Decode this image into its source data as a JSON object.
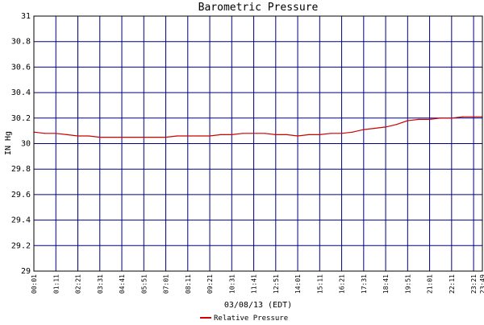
{
  "chart_data": {
    "type": "line",
    "title": "Barometric Pressure",
    "xlabel": "03/08/13 (EDT)",
    "ylabel": "IN Hg",
    "ylim": [
      29,
      31
    ],
    "yticks": [
      29,
      29.2,
      29.4,
      29.6,
      29.8,
      30,
      30.2,
      30.4,
      30.6,
      30.8,
      31
    ],
    "ytick_labels": [
      "29",
      "29.2",
      "29.4",
      "29.6",
      "29.8",
      "30",
      "30.2",
      "30.4",
      "30.6",
      "30.8",
      "31"
    ],
    "xtick_labels": [
      "00:01",
      "01:11",
      "02:21",
      "03:31",
      "04:41",
      "05:51",
      "07:01",
      "08:11",
      "09:21",
      "10:31",
      "11:41",
      "12:51",
      "14:01",
      "15:11",
      "16:21",
      "17:31",
      "18:41",
      "19:51",
      "21:01",
      "22:11",
      "23:21",
      "23:49"
    ],
    "grid": true,
    "legend_position": "bottom-center",
    "colors": {
      "series": "#cc0000",
      "grid": "#000080",
      "axes": "#000000"
    },
    "series": [
      {
        "name": "Relative Pressure",
        "x": [
          "00:01",
          "00:36",
          "01:11",
          "01:46",
          "02:21",
          "02:56",
          "03:31",
          "04:06",
          "04:41",
          "05:16",
          "05:51",
          "06:26",
          "07:01",
          "07:36",
          "08:11",
          "08:46",
          "09:21",
          "09:56",
          "10:31",
          "11:06",
          "11:41",
          "12:16",
          "12:51",
          "13:26",
          "14:01",
          "14:36",
          "15:11",
          "15:46",
          "16:21",
          "16:56",
          "17:31",
          "18:06",
          "18:41",
          "19:16",
          "19:51",
          "20:26",
          "21:01",
          "21:36",
          "22:11",
          "22:46",
          "23:21",
          "23:49"
        ],
        "values": [
          30.09,
          30.08,
          30.08,
          30.07,
          30.06,
          30.06,
          30.05,
          30.05,
          30.05,
          30.05,
          30.05,
          30.05,
          30.05,
          30.06,
          30.06,
          30.06,
          30.06,
          30.07,
          30.07,
          30.08,
          30.08,
          30.08,
          30.07,
          30.07,
          30.06,
          30.07,
          30.07,
          30.08,
          30.08,
          30.09,
          30.11,
          30.12,
          30.13,
          30.15,
          30.18,
          30.19,
          30.19,
          30.2,
          30.2,
          30.21,
          30.21,
          30.21
        ]
      }
    ]
  }
}
